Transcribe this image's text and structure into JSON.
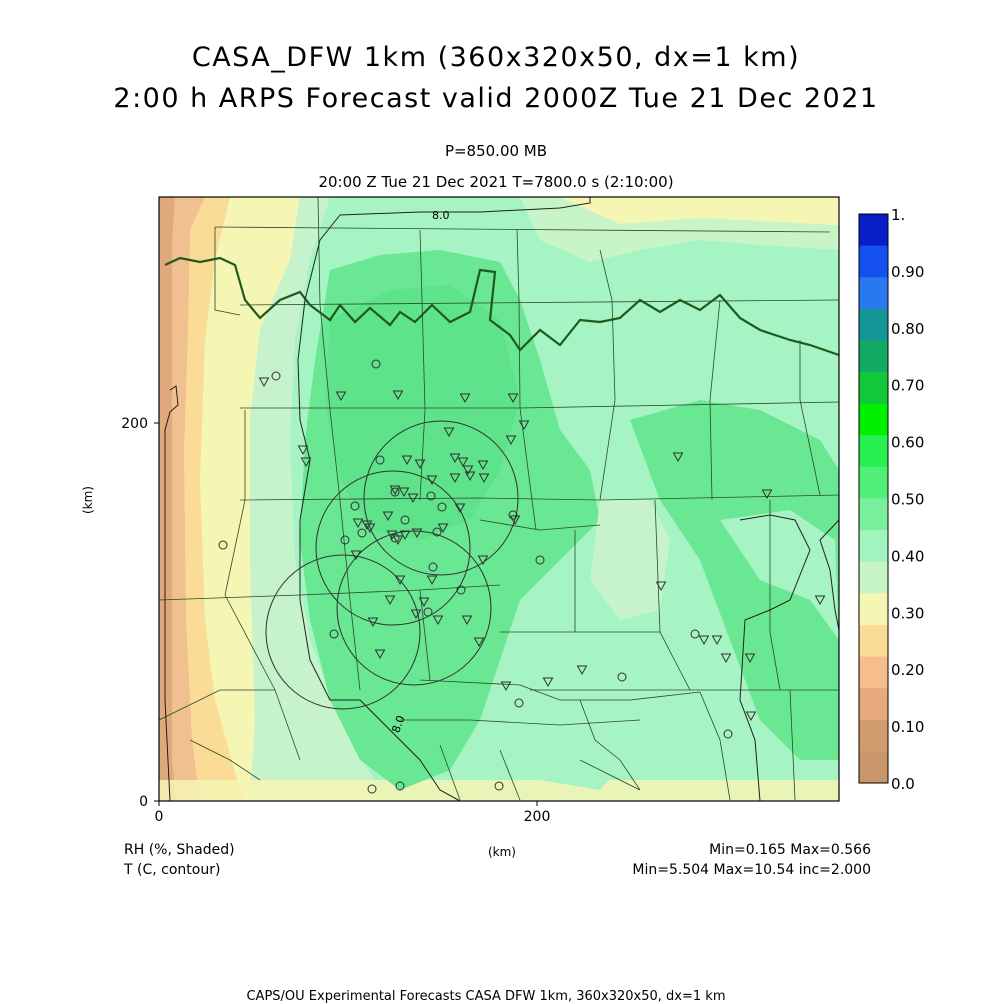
{
  "title": {
    "line1": "CASA_DFW 1km (360x320x50, dx=1 km)",
    "line2": "2:00 h ARPS Forecast valid 2000Z Tue 21 Dec 2021"
  },
  "subtitle": {
    "level": "P=850.00 MB",
    "time": "20:00 Z Tue 21 Dec 2021   T=7800.0 s (2:10:00)"
  },
  "axes": {
    "x_ticks": [
      "0",
      "200"
    ],
    "y_ticks": [
      "0",
      "200"
    ],
    "x_unit": "(km)",
    "y_unit": "(km)"
  },
  "fields": {
    "shaded": "RH (%, Shaded)",
    "contour": "T (C, contour)"
  },
  "stats": {
    "rh": "Min=0.165 Max=0.566",
    "t": "Min=5.504 Max=10.54 inc=2.000"
  },
  "contour_labels": [
    "8.0",
    "8.0"
  ],
  "colorbar": {
    "labels": [
      "1.",
      "0.90",
      "0.80",
      "0.70",
      "0.60",
      "0.50",
      "0.40",
      "0.30",
      "0.20",
      "0.10",
      "0.0"
    ],
    "colors": [
      "#0a1ec8",
      "#1450f0",
      "#2878f0",
      "#149696",
      "#14aa64",
      "#14c83c",
      "#00f000",
      "#28f050",
      "#50f078",
      "#78f09b",
      "#a0f5be",
      "#c8f5c8",
      "#f5f5b4",
      "#fadc96",
      "#f5be8c",
      "#e6aa7d",
      "#d29b6e",
      "#c8966a"
    ]
  },
  "footer": "CAPS/OU Experimental Forecasts   CASA DFW 1km, 360x320x50, dx=1 km"
}
